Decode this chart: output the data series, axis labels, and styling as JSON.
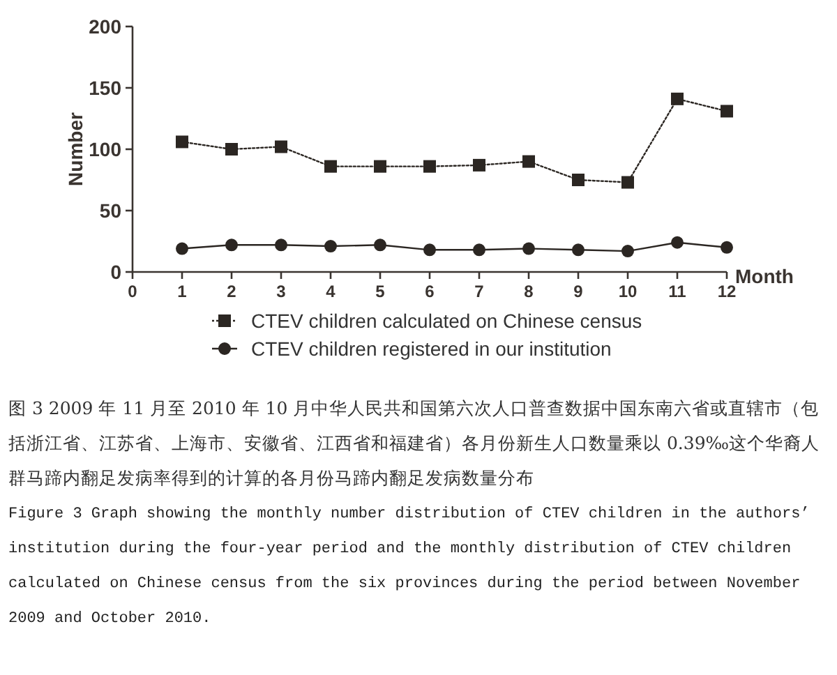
{
  "chart_data": {
    "type": "line",
    "xlabel": "Month",
    "ylabel": "Number",
    "x": [
      1,
      2,
      3,
      4,
      5,
      6,
      7,
      8,
      9,
      10,
      11,
      12
    ],
    "xlim": [
      0,
      12
    ],
    "xticks": [
      0,
      1,
      2,
      3,
      4,
      5,
      6,
      7,
      8,
      9,
      10,
      11,
      12
    ],
    "ylim": [
      0,
      200
    ],
    "yticks": [
      0,
      50,
      100,
      150,
      200
    ],
    "grid": false,
    "legend": "bottom",
    "series": [
      {
        "name": "CTEV children calculated on Chinese census",
        "color": "#2b2622",
        "marker": "square",
        "line_style": "dotted",
        "values": [
          106,
          100,
          102,
          86,
          86,
          86,
          87,
          90,
          75,
          73,
          141,
          131
        ]
      },
      {
        "name": "CTEV children registered in our institution",
        "color": "#2b2622",
        "marker": "circle",
        "line_style": "solid",
        "values": [
          19,
          22,
          22,
          21,
          22,
          18,
          18,
          19,
          18,
          17,
          24,
          20
        ]
      }
    ],
    "annotations": [
      "图 3 2009 年 11 月至 2010 年 10 月中华人民共和国第六次人口普查数据中国东南六省或直辖市（包括浙江省、江苏省、上海市、安徽省、江西省和福建省）各月份新生人口数量乘以 0.39‰这个华裔人群马蹄内翻足发病率得到的计算的各月份马蹄内翻足发病数量分布",
      "Figure 3 Graph showing the monthly number distribution of CTEV children in the authors’ institution during the four-year period and the monthly distribution of CTEV children calculated on Chinese census from the six provinces during the period between November 2009 and October 2010."
    ]
  }
}
